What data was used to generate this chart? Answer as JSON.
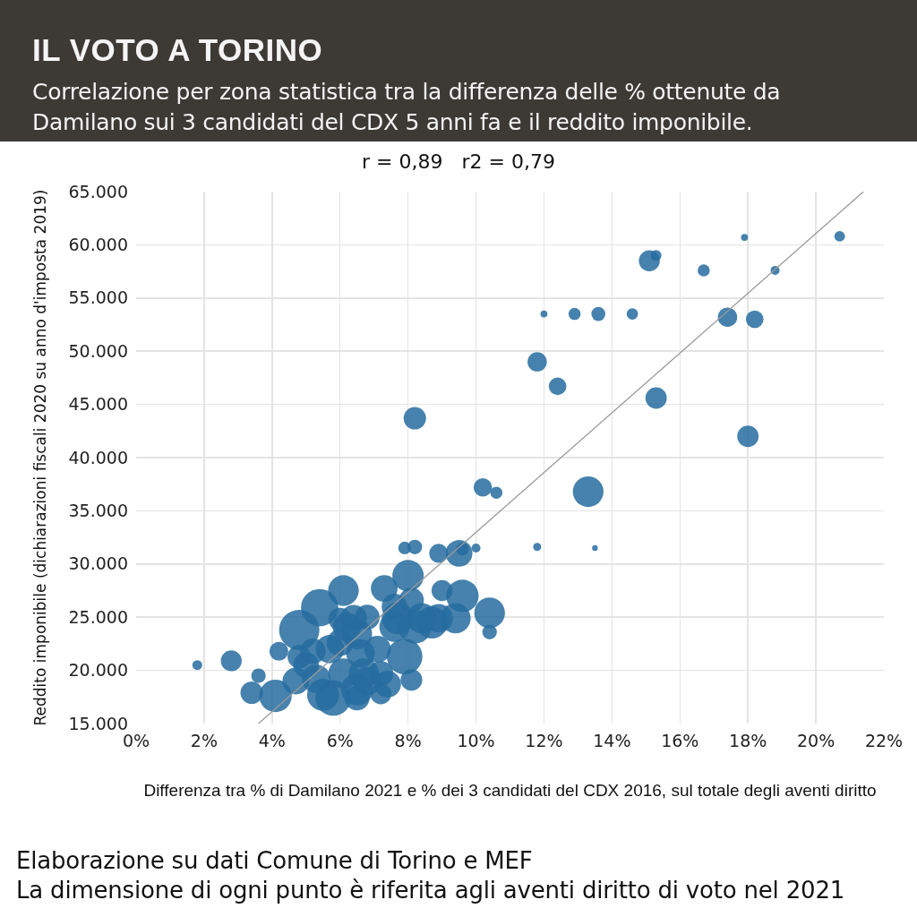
{
  "chart_data": {
    "type": "bubble",
    "title": "IL VOTO A TORINO",
    "subtitle": "Correlazione per zona statistica tra la differenza delle % ottenute da Damilano sui 3 candidati del CDX 5 anni fa e il reddito imponibile.",
    "xlabel": "Differenza tra % di Damilano 2021 e % dei 3 candidati del CDX 2016, sul totale degli aventi diritto",
    "ylabel": "Reddito imponibile (dichiarazioni fiscali 2020 su anno d'imposta 2019)",
    "annotations": [
      "r = 0,89   r2 = 0,79",
      "Elaborazione su dati Comune di Torino e MEF",
      "La dimensione di ogni punto è riferita agli aventi diritto di voto nel 2021"
    ],
    "x": [
      17.9,
      20.7,
      15.1,
      15.3,
      16.7,
      18.8,
      12.0,
      12.9,
      13.6,
      14.6,
      17.4,
      18.2,
      11.8,
      12.4,
      15.3,
      18.0,
      8.2,
      10.2,
      10.6,
      13.3,
      11.8,
      13.5,
      7.9,
      8.2,
      8.9,
      9.5,
      9.6,
      10.0,
      6.1,
      8.0,
      7.3,
      9.0,
      9.6,
      10.4,
      10.4,
      5.4,
      4.8,
      4.2,
      4.8,
      2.8,
      1.8,
      3.6,
      3.4,
      4.1,
      4.7,
      5.3,
      5.5,
      5.8,
      6.5,
      6.5,
      6.1,
      6.7,
      7.2,
      7.2,
      7.1,
      7.9,
      8.1,
      6.0,
      6.2,
      6.4,
      6.0,
      5.7,
      6.5,
      6.6,
      6.8,
      7.7,
      7.6,
      8.2,
      8.4,
      8.7,
      8.9,
      8.1,
      9.4,
      5.0,
      6.8,
      7.4,
      5.2,
      7.6
    ],
    "series": [
      {
        "color": "#266c9f",
        "values": [
          60700,
          60800,
          58500,
          59000,
          57600,
          57600,
          53500,
          53500,
          53500,
          53500,
          53200,
          53000,
          49000,
          46700,
          45600,
          42000,
          43700,
          37200,
          36700,
          36800,
          31600,
          31500,
          31500,
          31600,
          31000,
          31000,
          31400,
          31500,
          27500,
          28900,
          27700,
          27500,
          27000,
          25400,
          23600,
          25900,
          23800,
          21800,
          21300,
          20900,
          20500,
          19500,
          17900,
          17600,
          19000,
          19200,
          17700,
          17400,
          17400,
          18200,
          19700,
          19700,
          17800,
          19700,
          22000,
          21300,
          19100,
          22600,
          24100,
          24900,
          24800,
          22000,
          23400,
          21600,
          25000,
          24900,
          24100,
          24100,
          24900,
          24500,
          24900,
          26600,
          24900,
          20500,
          19000,
          18700,
          21800,
          26000
        ],
        "sizes": [
          0.03,
          0.07,
          0.27,
          0.07,
          0.09,
          0.05,
          0.03,
          0.09,
          0.12,
          0.08,
          0.23,
          0.19,
          0.23,
          0.19,
          0.28,
          0.28,
          0.31,
          0.21,
          0.09,
          0.58,
          0.04,
          0.02,
          0.1,
          0.13,
          0.22,
          0.44,
          0.1,
          0.05,
          0.58,
          0.61,
          0.44,
          0.27,
          0.65,
          0.58,
          0.13,
          0.86,
          1.0,
          0.22,
          0.34,
          0.27,
          0.06,
          0.13,
          0.31,
          0.65,
          0.44,
          0.5,
          0.63,
          0.78,
          0.38,
          0.63,
          0.56,
          0.56,
          0.27,
          0.38,
          0.44,
          0.78,
          0.29,
          0.44,
          0.5,
          0.44,
          0.33,
          0.5,
          0.56,
          0.5,
          0.38,
          0.63,
          0.56,
          0.7,
          0.56,
          0.63,
          0.5,
          0.38,
          0.56,
          0.4,
          0.5,
          0.44,
          0.4,
          0.4
        ]
      },
      {
        "type": "line",
        "color": "#9a9a9a",
        "x": [
          3.6,
          21.4
        ],
        "values": [
          15000,
          65000
        ]
      }
    ],
    "xlim": [
      0,
      22
    ],
    "xticks": [
      {
        "value": 0,
        "label": "0%"
      },
      {
        "value": 2,
        "label": "2%"
      },
      {
        "value": 4,
        "label": "4%"
      },
      {
        "value": 6,
        "label": "6%"
      },
      {
        "value": 8,
        "label": "8%"
      },
      {
        "value": 10,
        "label": "10%"
      },
      {
        "value": 12,
        "label": "12%"
      },
      {
        "value": 14,
        "label": "14%"
      },
      {
        "value": 16,
        "label": "16%"
      },
      {
        "value": 18,
        "label": "18%"
      },
      {
        "value": 20,
        "label": "20%"
      },
      {
        "value": 22,
        "label": "22%"
      }
    ],
    "ylim": [
      15000,
      65000
    ],
    "yticks": [
      {
        "value": 15000,
        "label": "15.000"
      },
      {
        "value": 20000,
        "label": "20.000"
      },
      {
        "value": 25000,
        "label": "25.000"
      },
      {
        "value": 30000,
        "label": "30.000"
      },
      {
        "value": 35000,
        "label": "35.000"
      },
      {
        "value": 40000,
        "label": "40.000"
      },
      {
        "value": 45000,
        "label": "45.000"
      },
      {
        "value": 50000,
        "label": "50.000"
      },
      {
        "value": 55000,
        "label": "55.000"
      },
      {
        "value": 60000,
        "label": "60.000"
      },
      {
        "value": 65000,
        "label": "65.000"
      }
    ],
    "grid": true
  }
}
